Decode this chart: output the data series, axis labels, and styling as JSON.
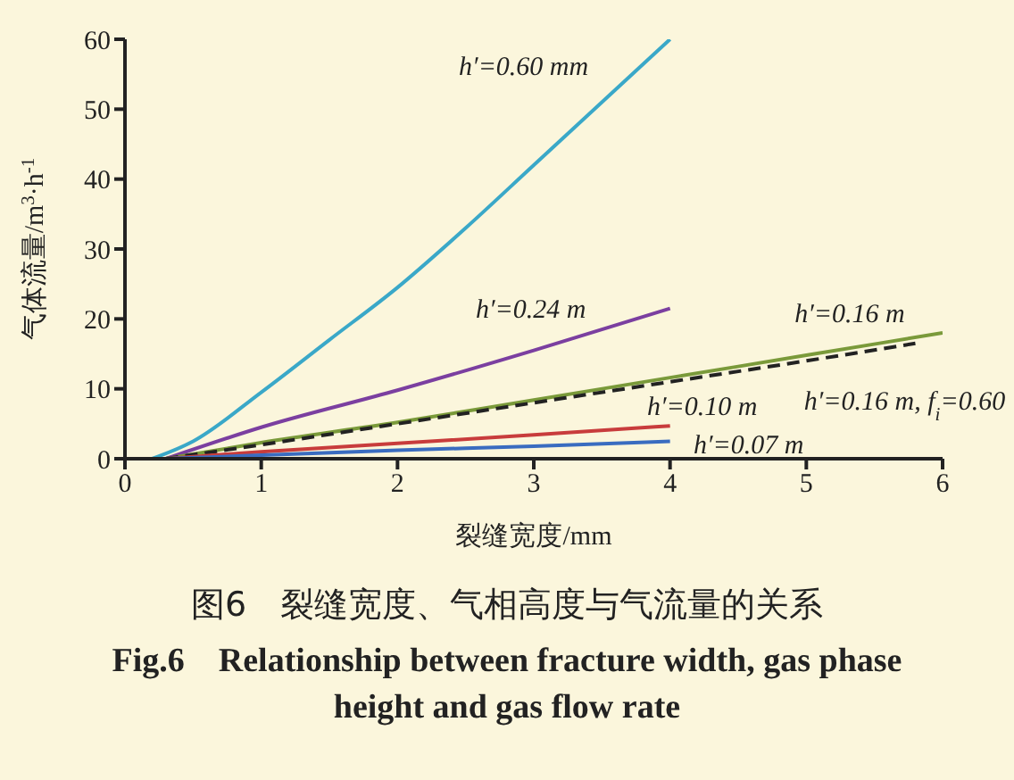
{
  "chart_data": {
    "type": "line",
    "title": "图6　裂缝宽度、气相高度与气流量的关系",
    "subtitle": "Fig.6　Relationship between fracture width, gas phase height and gas flow rate",
    "xlabel": "裂缝宽度/mm",
    "ylabel": "气体流量/m$^{3}$·h$^{-1}$",
    "xlim": [
      0,
      6
    ],
    "xticks": [
      0,
      1,
      2,
      3,
      4,
      5,
      6
    ],
    "ylim": [
      0,
      60
    ],
    "yticks": [
      0,
      10,
      20,
      30,
      40,
      50,
      60
    ],
    "grid": false,
    "legend": false,
    "marker": "none",
    "series": [
      {
        "name": "h′=0.60 mm",
        "color": "#3aa8c8",
        "line_style": "solid",
        "x": [
          0.2,
          0.5,
          1,
          1.5,
          2,
          2.5,
          3,
          3.5,
          4
        ],
        "values": [
          0,
          2.5,
          9.5,
          17,
          24.5,
          33,
          42,
          51,
          60
        ]
      },
      {
        "name": "h′=0.24 m",
        "color": "#7b3fa0",
        "line_style": "solid",
        "x": [
          0.3,
          1,
          2,
          3,
          4
        ],
        "values": [
          0,
          4.5,
          9.8,
          15.5,
          21.5
        ]
      },
      {
        "name": "h′=0.16 m",
        "color": "#7a9a3a",
        "line_style": "solid",
        "x": [
          0.3,
          1,
          2,
          3,
          4,
          5,
          6
        ],
        "values": [
          0,
          2.3,
          5.2,
          8.4,
          11.6,
          14.8,
          18
        ]
      },
      {
        "name": "h′=0.16 m, f$_{i}$=0.60",
        "color": "#222222",
        "line_style": "dashed",
        "x": [
          0.3,
          1,
          2,
          3,
          4,
          5,
          5.8
        ],
        "values": [
          0,
          2.0,
          5.0,
          8.0,
          11.0,
          14.0,
          16.5
        ]
      },
      {
        "name": "h′=0.10 m",
        "color": "#c83c3c",
        "line_style": "solid",
        "x": [
          0.3,
          1,
          2,
          3,
          4
        ],
        "values": [
          0,
          1.0,
          2.2,
          3.4,
          4.7
        ]
      },
      {
        "name": "h′=0.07 m",
        "color": "#3a6cc0",
        "line_style": "solid",
        "x": [
          0.3,
          1,
          2,
          3,
          4
        ],
        "values": [
          0,
          0.5,
          1.2,
          1.8,
          2.5
        ]
      }
    ]
  }
}
